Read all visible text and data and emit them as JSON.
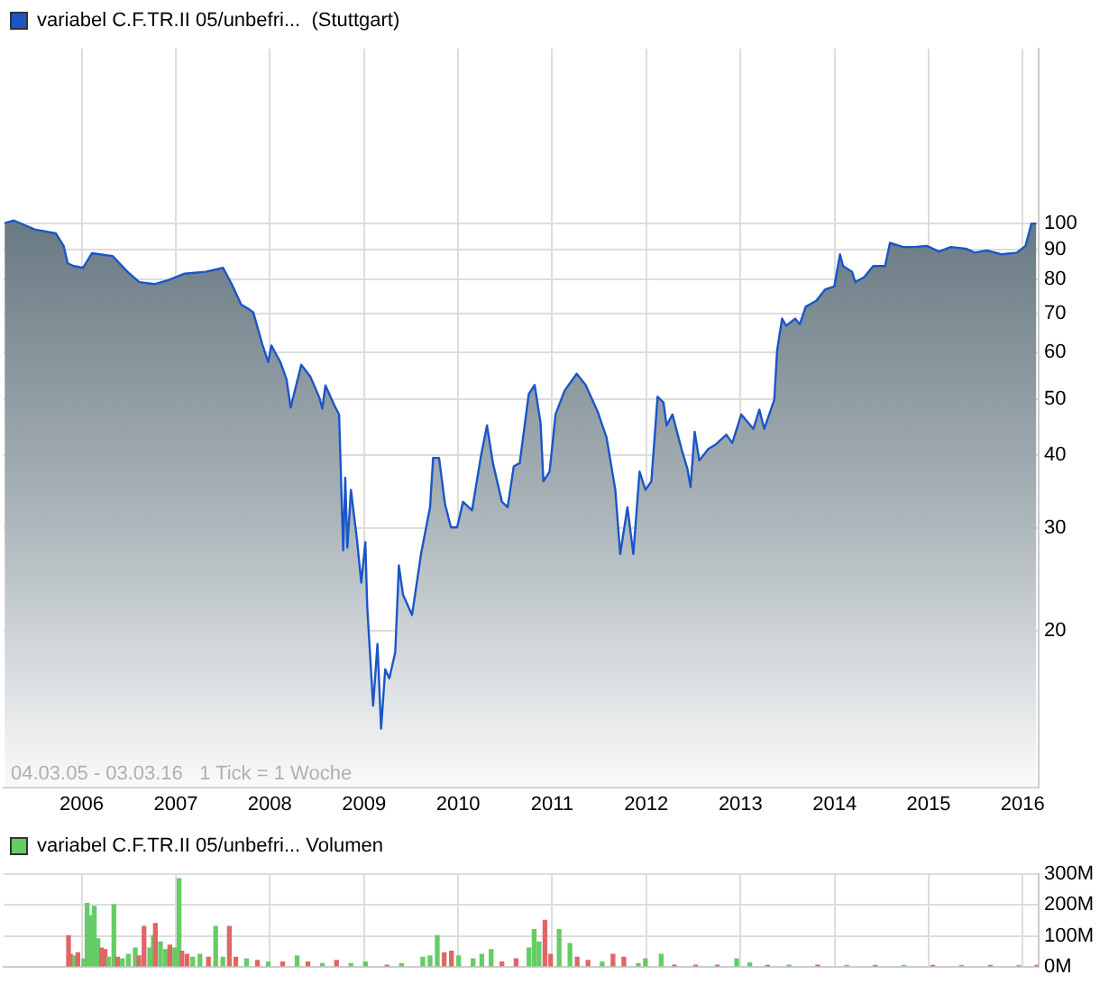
{
  "chart_data": [
    {
      "type": "area",
      "log": "y",
      "grid": true,
      "legend": "top left",
      "annotations": [
        "04.03.05 - 03.03.16   1 Tick = 1 Woche"
      ],
      "xlim": [
        "2005-03-04",
        "2016-03-03"
      ],
      "xticks": [
        "2006",
        "2007",
        "2008",
        "2009",
        "2010",
        "2011",
        "2012",
        "2013",
        "2014",
        "2015",
        "2016"
      ],
      "ylim": [
        10.8,
        199
      ],
      "yticks": [
        20,
        30,
        40,
        50,
        60,
        70,
        80,
        90,
        100
      ],
      "series": [
        {
          "name": "variabel C.F.TR.II 05/unbefri...  (Stuttgart)",
          "color": "#1a56c8",
          "x": [
            "2005-03-08",
            "2005-04-13",
            "2005-07-03",
            "2005-09-23",
            "2005-10-23",
            "2005-11-08",
            "2005-12-02",
            "2006-01-06",
            "2006-02-10",
            "2006-05-01",
            "2006-06-28",
            "2006-08-13",
            "2006-10-11",
            "2006-12-08",
            "2007-02-04",
            "2007-04-26",
            "2007-07-04",
            "2007-08-08",
            "2007-09-12",
            "2007-10-16",
            "2007-10-29",
            "2007-12-03",
            "2007-12-26",
            "2008-01-07",
            "2008-02-11",
            "2008-03-06",
            "2008-03-22",
            "2008-04-21",
            "2008-05-02",
            "2008-06-06",
            "2008-07-11",
            "2008-07-23",
            "2008-08-04",
            "2008-09-08",
            "2008-09-26",
            "2008-10-12",
            "2008-10-20",
            "2008-10-28",
            "2008-11-11",
            "2008-12-04",
            "2008-12-21",
            "2009-01-06",
            "2009-01-13",
            "2009-02-05",
            "2009-02-22",
            "2009-03-08",
            "2009-03-24",
            "2009-04-09",
            "2009-05-02",
            "2009-05-16",
            "2009-06-01",
            "2009-07-06",
            "2009-08-10",
            "2009-09-14",
            "2009-09-26",
            "2009-10-19",
            "2009-11-11",
            "2009-12-04",
            "2009-12-28",
            "2010-01-20",
            "2010-02-24",
            "2010-03-31",
            "2010-04-23",
            "2010-05-16",
            "2010-06-20",
            "2010-07-12",
            "2010-08-05",
            "2010-08-28",
            "2010-10-02",
            "2010-10-25",
            "2010-11-17",
            "2010-11-28",
            "2010-12-22",
            "2011-01-14",
            "2011-02-18",
            "2011-04-06",
            "2011-05-11",
            "2011-06-26",
            "2011-07-31",
            "2011-09-03",
            "2011-09-22",
            "2011-10-20",
            "2011-11-12",
            "2011-12-06",
            "2011-12-29",
            "2012-01-21",
            "2012-02-14",
            "2012-03-08",
            "2012-03-20",
            "2012-04-12",
            "2012-05-17",
            "2012-06-09",
            "2012-06-21",
            "2012-07-07",
            "2012-07-25",
            "2012-08-29",
            "2012-09-28",
            "2012-11-07",
            "2012-11-30",
            "2013-01-04",
            "2013-02-20",
            "2013-03-15",
            "2013-04-03",
            "2013-05-12",
            "2013-05-23",
            "2013-06-11",
            "2013-06-27",
            "2013-08-01",
            "2013-08-19",
            "2013-09-11",
            "2013-10-22",
            "2013-11-26",
            "2013-12-31",
            "2014-01-22",
            "2014-02-03",
            "2014-03-10",
            "2014-03-22",
            "2014-04-26",
            "2014-05-31",
            "2014-07-16",
            "2014-08-04",
            "2014-09-24",
            "2014-11-09",
            "2014-12-25",
            "2015-02-10",
            "2015-03-28",
            "2015-05-25",
            "2015-06-29",
            "2015-08-14",
            "2015-10-11",
            "2015-12-09",
            "2016-01-12",
            "2016-02-04",
            "2016-02-23"
          ],
          "values": [
            100,
            101,
            97.5,
            96,
            91.4,
            85.3,
            84.4,
            83.8,
            88.8,
            87.8,
            82.5,
            79.2,
            78.6,
            80,
            81.9,
            82.5,
            83.8,
            78.3,
            72.5,
            71,
            70.3,
            62,
            57.8,
            61.7,
            57.8,
            54,
            48.3,
            54.6,
            57.2,
            54.6,
            50.3,
            48.1,
            52.7,
            48.7,
            47,
            27.5,
            36.6,
            27.8,
            34.9,
            28.8,
            24.2,
            28.4,
            22.1,
            14.9,
            19,
            13.6,
            17.2,
            16.6,
            18.4,
            25.9,
            23.1,
            21.3,
            27.1,
            32.6,
            39.6,
            39.6,
            33,
            30.1,
            30.1,
            33.3,
            32.2,
            40,
            45,
            38.8,
            33.3,
            32.6,
            38.3,
            38.8,
            50.9,
            52.8,
            45.4,
            36.1,
            37.5,
            47,
            51.6,
            55.2,
            52.8,
            47.6,
            42.9,
            34.9,
            27.1,
            32.6,
            27.1,
            37.5,
            34.9,
            36.1,
            50.4,
            49.3,
            45,
            47,
            41,
            37.9,
            35.3,
            43.9,
            39.2,
            41,
            41.8,
            43.4,
            42,
            47,
            44.4,
            47.9,
            44.4,
            49.8,
            60.5,
            68.6,
            66.7,
            68.6,
            67.1,
            71.9,
            73.6,
            77,
            77.9,
            88.4,
            84.4,
            82.5,
            79.2,
            80.8,
            84.4,
            84.4,
            92.5,
            91,
            91,
            91.4,
            89.4,
            91,
            90.4,
            89,
            89.8,
            88.4,
            89,
            91.4,
            99.8,
            99.8
          ]
        }
      ]
    },
    {
      "type": "bar",
      "grid": true,
      "legend": "top left",
      "tick_labels": "y",
      "xlim": [
        "2005-03-04",
        "2016-03-03"
      ],
      "xticks": [
        "2006",
        "2007",
        "2008",
        "2009",
        "2010",
        "2011",
        "2012",
        "2013",
        "2014",
        "2015",
        "2016"
      ],
      "ylim": [
        0,
        300
      ],
      "yticks": [
        {
          "value": 0,
          "label": "0M"
        },
        {
          "value": 100,
          "label": "100M"
        },
        {
          "value": 200,
          "label": "200M"
        },
        {
          "value": 300,
          "label": "300M"
        }
      ],
      "series": [
        {
          "name": "variabel C.F.TR.II 05/unbefri... Volumen",
          "color": "#66cc66",
          "x": [
            "2005-11-11",
            "2005-11-19",
            "2005-12-04",
            "2005-12-17",
            "2006-01-09",
            "2006-01-22",
            "2006-02-05",
            "2006-02-19",
            "2006-03-05",
            "2006-03-19",
            "2006-04-02",
            "2006-04-16",
            "2006-05-06",
            "2006-05-20",
            "2006-06-08",
            "2006-07-01",
            "2006-07-28",
            "2006-08-11",
            "2006-08-31",
            "2006-09-22",
            "2006-10-06",
            "2006-10-14",
            "2006-11-03",
            "2006-11-22",
            "2006-12-09",
            "2006-12-28",
            "2007-01-14",
            "2007-01-25",
            "2007-02-14",
            "2007-03-08",
            "2007-04-05",
            "2007-05-08",
            "2007-06-05",
            "2007-07-03",
            "2007-07-28",
            "2007-08-22",
            "2007-10-03",
            "2007-11-14",
            "2007-12-26",
            "2008-02-20",
            "2008-04-16",
            "2008-05-28",
            "2008-07-23",
            "2008-09-16",
            "2008-11-11",
            "2009-01-06",
            "2009-03-31",
            "2009-05-26",
            "2009-08-17",
            "2009-09-14",
            "2009-10-12",
            "2009-11-08",
            "2009-12-06",
            "2010-01-03",
            "2010-02-28",
            "2010-04-03",
            "2010-05-09",
            "2010-06-20",
            "2010-08-14",
            "2010-10-03",
            "2010-10-23",
            "2010-11-11",
            "2010-12-04",
            "2010-12-26",
            "2011-01-28",
            "2011-03-11",
            "2011-04-08",
            "2011-05-20",
            "2011-07-14",
            "2011-08-25",
            "2011-10-06",
            "2011-12-01",
            "2011-12-29",
            "2012-02-28",
            "2012-04-19",
            "2012-07-11",
            "2012-10-03",
            "2012-12-17",
            "2013-02-06",
            "2013-04-16",
            "2013-07-08",
            "2013-10-28",
            "2014-02-17",
            "2014-06-08",
            "2014-09-27",
            "2015-01-17",
            "2015-05-09",
            "2015-08-28",
            "2015-12-17",
            "2016-02-25"
          ],
          "values": [
            100,
            40,
            35,
            45,
            25,
            205,
            165,
            195,
            90,
            60,
            55,
            30,
            200,
            30,
            25,
            40,
            60,
            35,
            130,
            60,
            100,
            140,
            80,
            55,
            70,
            60,
            285,
            50,
            40,
            30,
            40,
            30,
            130,
            30,
            130,
            30,
            25,
            20,
            15,
            15,
            35,
            15,
            10,
            20,
            10,
            15,
            5,
            10,
            30,
            35,
            100,
            45,
            50,
            35,
            25,
            40,
            55,
            15,
            25,
            60,
            120,
            80,
            150,
            40,
            120,
            75,
            30,
            20,
            15,
            40,
            30,
            10,
            25,
            40,
            5,
            5,
            5,
            25,
            12,
            4,
            5,
            5,
            4,
            4,
            4,
            4,
            4,
            4,
            4,
            4
          ],
          "colors": [
            "#e06666",
            "#e06666",
            "#66cc66",
            "#e06666",
            "#66cc66",
            "#66cc66",
            "#66cc66",
            "#66cc66",
            "#66cc66",
            "#e06666",
            "#e06666",
            "#66cc66",
            "#66cc66",
            "#e06666",
            "#66cc66",
            "#66cc66",
            "#66cc66",
            "#e06666",
            "#e06666",
            "#66cc66",
            "#66cc66",
            "#e06666",
            "#66cc66",
            "#66cc66",
            "#e06666",
            "#66cc66",
            "#66cc66",
            "#e06666",
            "#e06666",
            "#66cc66",
            "#66cc66",
            "#e06666",
            "#66cc66",
            "#66cc66",
            "#e06666",
            "#e06666",
            "#66cc66",
            "#e06666",
            "#66cc66",
            "#e06666",
            "#66cc66",
            "#e06666",
            "#66cc66",
            "#e06666",
            "#66cc66",
            "#66cc66",
            "#e06666",
            "#66cc66",
            "#66cc66",
            "#66cc66",
            "#66cc66",
            "#e06666",
            "#e06666",
            "#66cc66",
            "#66cc66",
            "#66cc66",
            "#66cc66",
            "#e06666",
            "#e06666",
            "#66cc66",
            "#66cc66",
            "#66cc66",
            "#e06666",
            "#e06666",
            "#66cc66",
            "#66cc66",
            "#e06666",
            "#e06666",
            "#66cc66",
            "#e06666",
            "#e06666",
            "#66cc66",
            "#66cc66",
            "#66cc66",
            "#e06666",
            "#e06666",
            "#e06666",
            "#66cc66",
            "#66cc66",
            "#e06666",
            "#66cc66",
            "#e06666",
            "#66cc66",
            "#e06666",
            "#66cc66",
            "#e06666",
            "#66cc66",
            "#e06666",
            "#66cc66",
            "#e06666"
          ]
        }
      ]
    }
  ]
}
